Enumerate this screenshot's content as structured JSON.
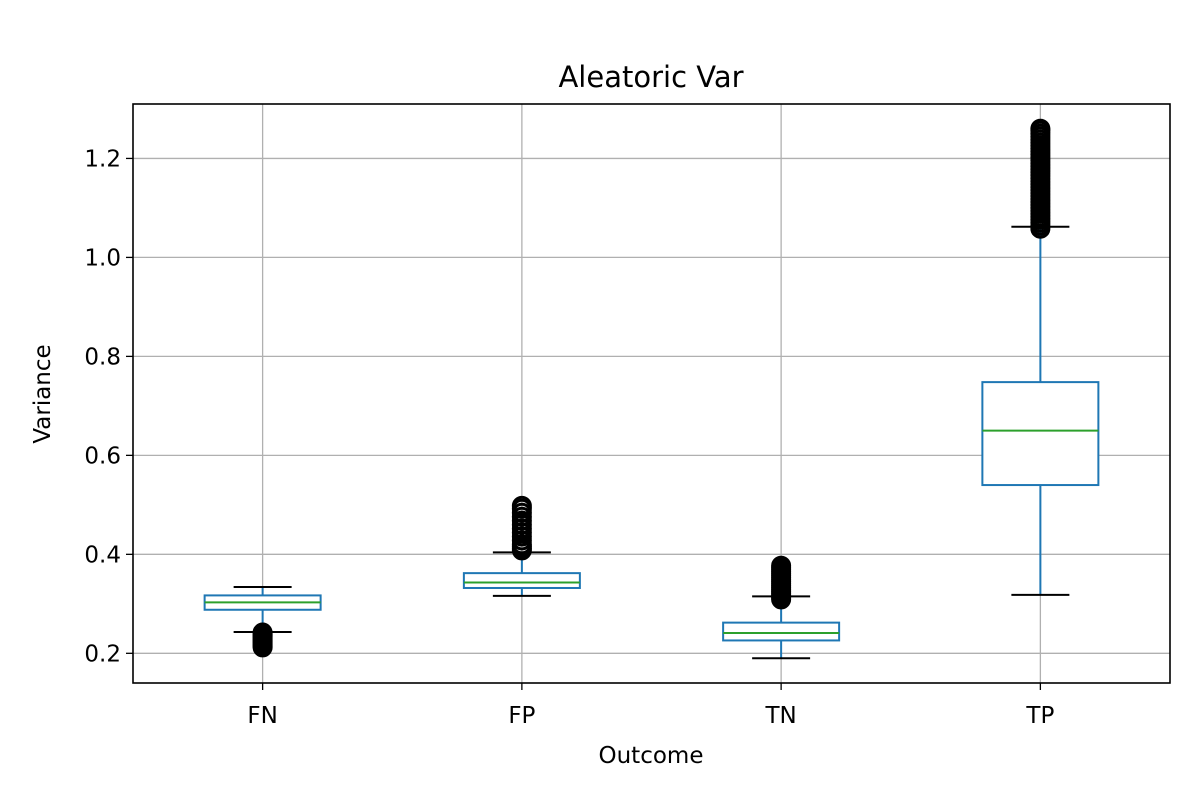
{
  "chart_data": {
    "type": "box",
    "title": "Aleatoric Var",
    "xlabel": "Outcome",
    "ylabel": "Variance",
    "categories": [
      "FN",
      "FP",
      "TN",
      "TP"
    ],
    "ylim": [
      0.14,
      1.31
    ],
    "yticks": [
      0.2,
      0.4,
      0.6,
      0.8,
      1.0,
      1.2
    ],
    "ytick_labels": [
      "0.2",
      "0.4",
      "0.6",
      "0.8",
      "1.0",
      "1.2"
    ],
    "grid": true,
    "boxes": [
      {
        "label": "FN",
        "whisker_low": 0.243,
        "q1": 0.288,
        "median": 0.303,
        "q3": 0.317,
        "whisker_high": 0.334,
        "outliers": [
          0.212,
          0.215,
          0.218,
          0.221,
          0.224,
          0.227,
          0.23,
          0.233,
          0.236,
          0.239,
          0.242
        ]
      },
      {
        "label": "FP",
        "whisker_low": 0.316,
        "q1": 0.332,
        "median": 0.343,
        "q3": 0.362,
        "whisker_high": 0.404,
        "outliers": [
          0.408,
          0.412,
          0.416,
          0.42,
          0.428,
          0.436,
          0.444,
          0.452,
          0.46,
          0.468,
          0.476,
          0.484,
          0.492,
          0.498
        ]
      },
      {
        "label": "TN",
        "whisker_low": 0.19,
        "q1": 0.226,
        "median": 0.241,
        "q3": 0.262,
        "whisker_high": 0.315,
        "outliers": [
          0.309,
          0.313,
          0.317,
          0.321,
          0.325,
          0.329,
          0.333,
          0.337,
          0.341,
          0.345,
          0.349,
          0.353,
          0.357,
          0.361,
          0.365,
          0.369,
          0.373,
          0.377
        ]
      },
      {
        "label": "TP",
        "whisker_low": 0.318,
        "q1": 0.54,
        "median": 0.65,
        "q3": 0.748,
        "whisker_high": 1.062,
        "outliers": [
          1.058,
          1.064,
          1.07,
          1.076,
          1.082,
          1.088,
          1.094,
          1.1,
          1.106,
          1.112,
          1.118,
          1.124,
          1.13,
          1.136,
          1.142,
          1.148,
          1.154,
          1.16,
          1.166,
          1.172,
          1.178,
          1.184,
          1.19,
          1.196,
          1.202,
          1.208,
          1.214,
          1.22,
          1.226,
          1.232,
          1.238,
          1.244,
          1.25,
          1.256,
          1.26
        ]
      }
    ]
  },
  "colors": {
    "box": "#1f77b4",
    "median": "#2ca02c",
    "whisker_cap": "#000000",
    "outlier": "#000000",
    "grid": "#b0b0b0",
    "axes": "#000000"
  }
}
